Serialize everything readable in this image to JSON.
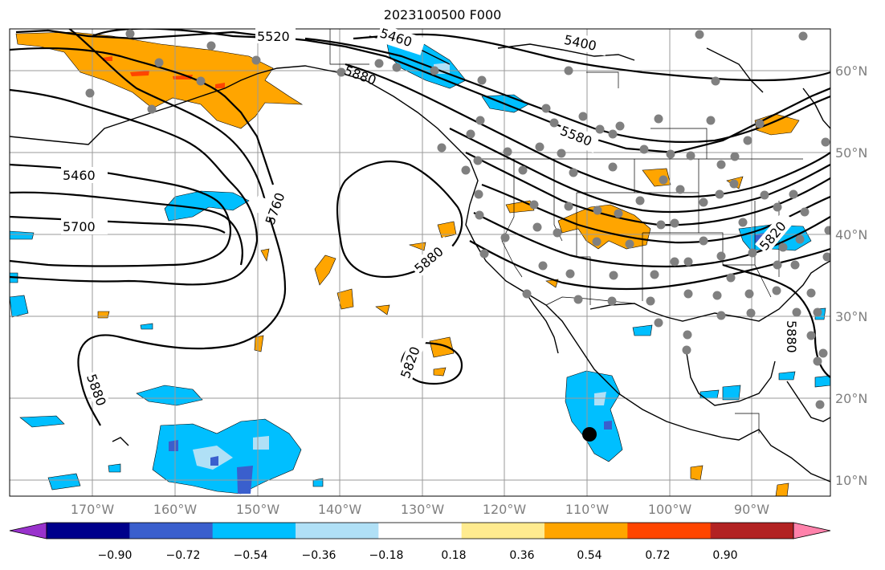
{
  "title": "2023100500 F000",
  "latitude_labels": [
    "60°N",
    "50°N",
    "40°N",
    "30°N",
    "20°N",
    "10°N"
  ],
  "longitude_labels": [
    "170°W",
    "160°W",
    "150°W",
    "140°W",
    "130°W",
    "120°W",
    "110°W",
    "100°W",
    "90°W"
  ],
  "contour_labels": [
    "5520",
    "5460",
    "5400",
    "5580",
    "5460",
    "5760",
    "5700",
    "5880",
    "5880",
    "5820",
    "5880",
    "5820",
    "5880"
  ],
  "colorbar": {
    "tick_labels": [
      "−0.90",
      "−0.72",
      "−0.54",
      "−0.36",
      "−0.18",
      "0.18",
      "0.36",
      "0.54",
      "0.72",
      "0.90"
    ],
    "under_color": "#9932cc",
    "bin_colors": [
      "#00008b",
      "#3a5fcd",
      "#00bfff",
      "#b0e0f6",
      "#ffffff",
      "#ffeb8f",
      "#ffa500",
      "#ff4500",
      "#b22222"
    ],
    "over_color": "#ff82ab"
  },
  "colors": {
    "positive_shade": "#ffa500",
    "positive_strong": "#ff4500",
    "negative_shade": "#00bfff",
    "negative_light": "#b0e0f6",
    "negative_strong": "#3a5fcd",
    "station_marker": "#808080",
    "highlight_marker": "#000000"
  }
}
